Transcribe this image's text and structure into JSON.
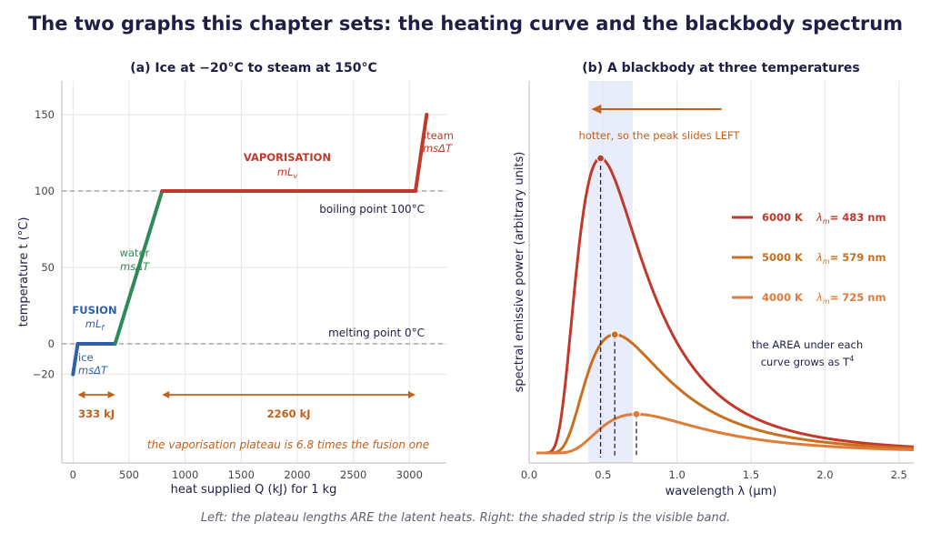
{
  "figure": {
    "title": "The two graphs this chapter sets: the heating curve and the blackbody spectrum",
    "caption": "Left: the plateau lengths ARE the latent heats. Right: the shaded strip is the visible band."
  },
  "colors": {
    "ice": "#2f5fa8",
    "water": "#2e8b57",
    "steam": "#c0392b",
    "arrow": "#c0601a",
    "text": "#1f1f45",
    "grid": "#e6e6e6",
    "visible_band": "#e8ecfb",
    "curve_6000": "#c0392b",
    "curve_5000": "#c8701f",
    "curve_4000": "#e07b39"
  },
  "chart_data": [
    {
      "type": "line",
      "title": "(a)  Ice at −20°C to steam at 150°C",
      "xlabel": "heat supplied  Q  (kJ)   for 1 kg",
      "ylabel": "temperature  t  (°C)",
      "xlim": [
        -100,
        3330
      ],
      "ylim": [
        -78,
        172
      ],
      "xticks": [
        0,
        500,
        1000,
        1500,
        2000,
        2500,
        3000
      ],
      "yticks": [
        -20,
        0,
        50,
        100,
        150
      ],
      "ytick_labels": [
        "−20",
        "0",
        "50",
        "100",
        "150"
      ],
      "grid": true,
      "series": [
        {
          "key": "ice",
          "points": [
            [
              0,
              -20
            ],
            [
              42,
              0
            ]
          ]
        },
        {
          "key": "ice_fusion",
          "points": [
            [
              42,
              0
            ],
            [
              375,
              0
            ]
          ]
        },
        {
          "key": "water",
          "points": [
            [
              375,
              0
            ],
            [
              794,
              100
            ]
          ]
        },
        {
          "key": "vaporisation",
          "points": [
            [
              794,
              100
            ],
            [
              3054,
              100
            ]
          ]
        },
        {
          "key": "steam",
          "points": [
            [
              3054,
              100
            ],
            [
              3154,
              150
            ]
          ]
        }
      ],
      "reference_lines": [
        {
          "y": 100,
          "label": "boiling point  100°C"
        },
        {
          "y": 0,
          "label": "melting point  0°C"
        }
      ],
      "annotations": {
        "vaporisation": {
          "title": "VAPORISATION",
          "formula": "mL",
          "sub": "v"
        },
        "fusion": {
          "title": "FUSION",
          "formula": "mL",
          "sub": "f"
        },
        "water": {
          "title": "water",
          "formula": "msΔT"
        },
        "steam": {
          "title": "steam",
          "formula": "msΔT"
        },
        "ice": {
          "title": "ice",
          "formula": "msΔT"
        }
      },
      "spans": [
        {
          "from": 42,
          "to": 375,
          "label": "333 kJ"
        },
        {
          "from": 794,
          "to": 3054,
          "label": "2260 kJ"
        }
      ],
      "note": "the vaporisation plateau is 6.8 times the fusion one"
    },
    {
      "type": "line",
      "title": "(b)  A blackbody at three temperatures",
      "xlabel": "wavelength  λ  (μm)",
      "ylabel": "spectral emissive power  (arbitrary units)",
      "xlim": [
        0.0,
        2.6
      ],
      "xticks": [
        0.0,
        0.5,
        1.0,
        1.5,
        2.0,
        2.5
      ],
      "xtick_labels": [
        "0.0",
        "0.5",
        "1.0",
        "1.5",
        "2.0",
        "2.5"
      ],
      "grid": true,
      "visible_band": [
        0.4,
        0.7
      ],
      "shift_arrow": {
        "from": 1.3,
        "to": 0.42,
        "label": "hotter, so the peak slides LEFT"
      },
      "series": [
        {
          "temperature": 6000,
          "name": "6000 K",
          "peak_label": "λ",
          "peak_sub": "m",
          "peak_value": "= 483 nm",
          "peak_um": 0.483,
          "relative_peak": 1.0
        },
        {
          "temperature": 5000,
          "name": "5000 K",
          "peak_label": "λ",
          "peak_sub": "m",
          "peak_value": "= 579 nm",
          "peak_um": 0.579,
          "relative_peak": 0.402
        },
        {
          "temperature": 4000,
          "name": "4000 K",
          "peak_label": "λ",
          "peak_sub": "m",
          "peak_value": "= 725 nm",
          "peak_um": 0.725,
          "relative_peak": 0.132
        }
      ],
      "area_note": [
        "the AREA under each",
        "curve grows as T",
        "4"
      ]
    }
  ]
}
